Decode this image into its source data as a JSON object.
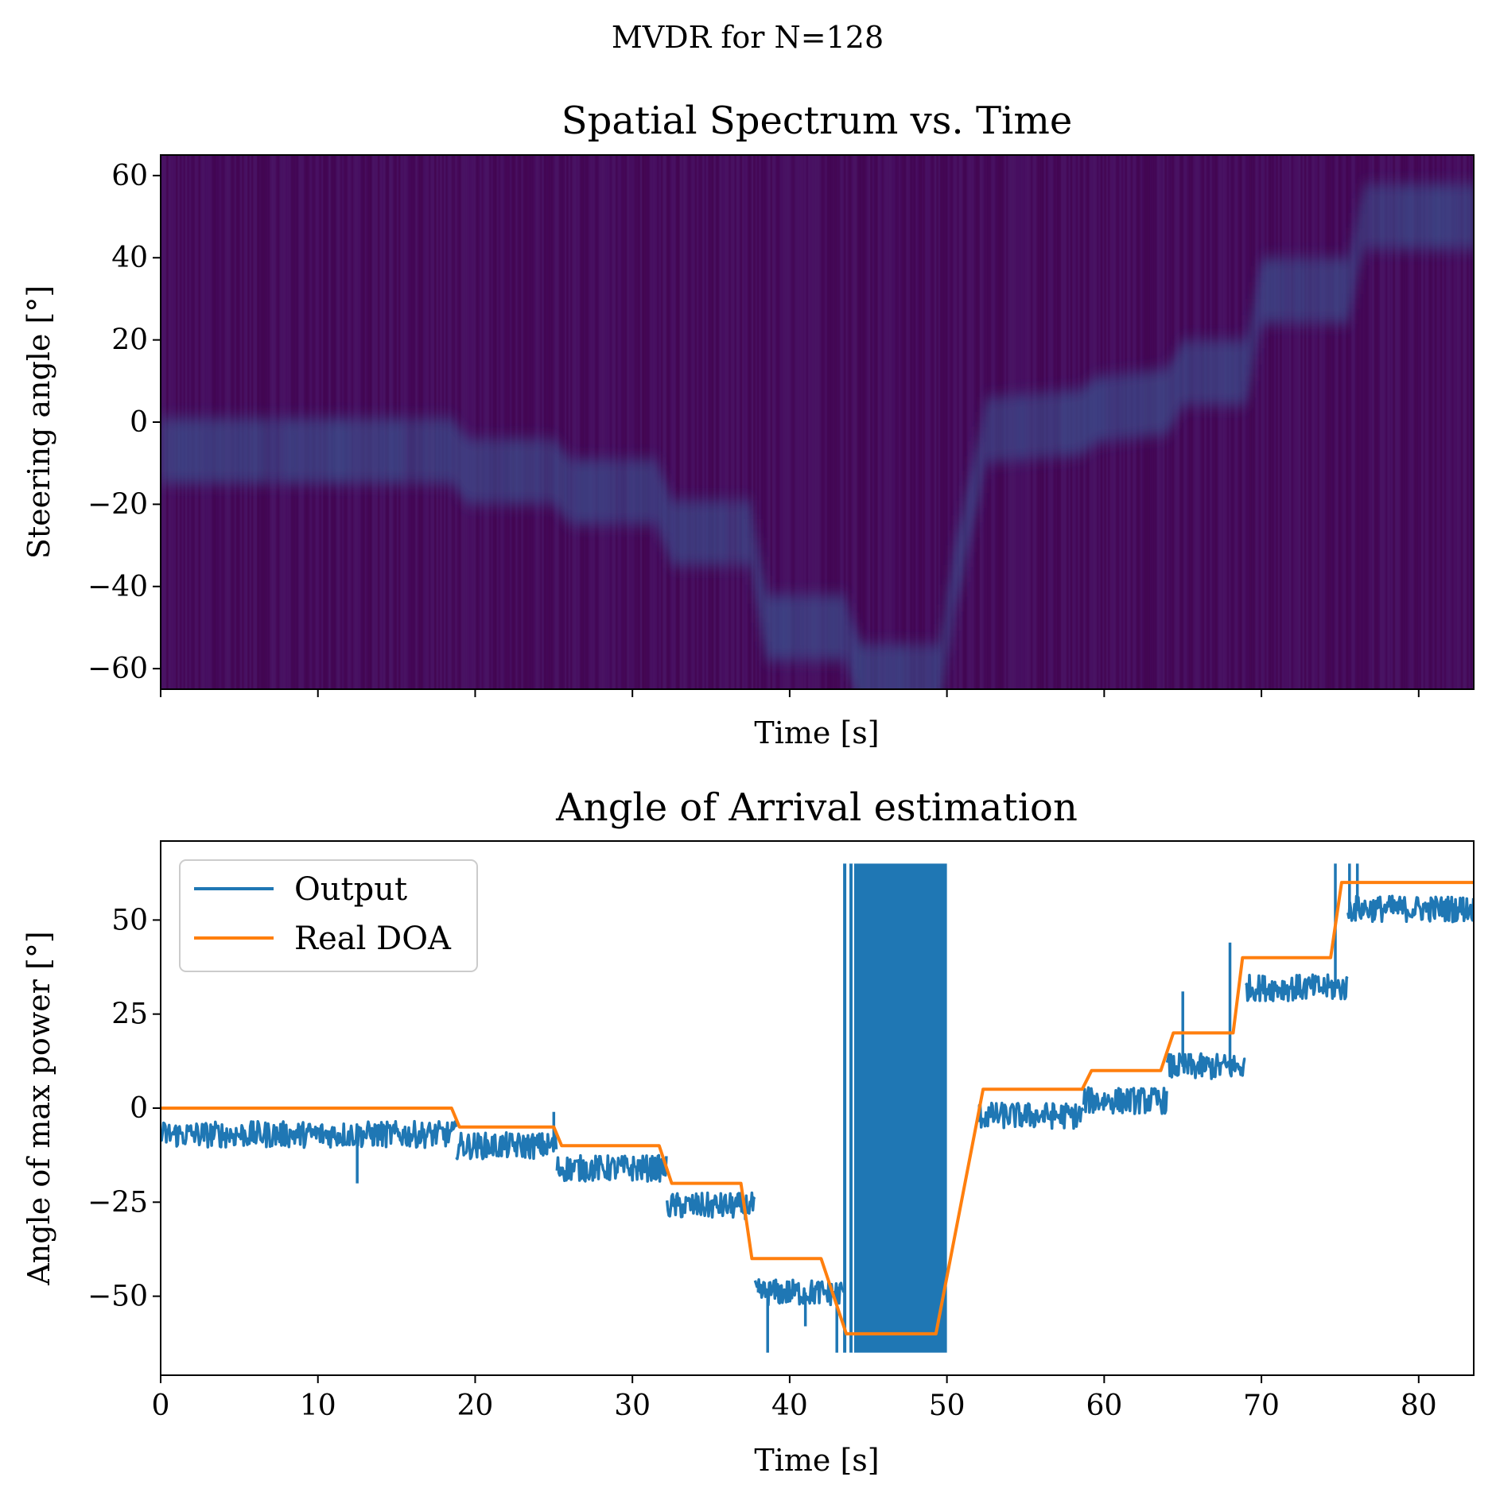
{
  "figure": {
    "suptitle": "MVDR for N=128"
  },
  "chart_data": [
    {
      "type": "heatmap",
      "title": "Spatial Spectrum vs. Time",
      "xlabel": "Time [s]",
      "ylabel": "Steering angle [°]",
      "xlim": [
        0,
        83.5
      ],
      "ylim": [
        -65,
        65
      ],
      "yticks": [
        60,
        40,
        20,
        0,
        -20,
        -40,
        -60
      ],
      "ytick_labels": [
        "60",
        "40",
        "20",
        "0",
        "−20",
        "−40",
        "−60"
      ],
      "xticks": [
        0,
        10,
        20,
        30,
        40,
        50,
        60,
        70,
        80
      ],
      "xtick_labels_visible": false,
      "colormap": "viridis",
      "background_color": "#460a5d",
      "ridge_color": "#3b4e8c",
      "ridge_track": [
        {
          "t": 0,
          "angle": -7
        },
        {
          "t": 18.5,
          "angle": -7
        },
        {
          "t": 19.5,
          "angle": -12
        },
        {
          "t": 25,
          "angle": -12
        },
        {
          "t": 26,
          "angle": -17
        },
        {
          "t": 31.5,
          "angle": -17
        },
        {
          "t": 32.5,
          "angle": -27
        },
        {
          "t": 37.5,
          "angle": -27
        },
        {
          "t": 38.5,
          "angle": -50
        },
        {
          "t": 43.5,
          "angle": -50
        },
        {
          "t": 44.5,
          "angle": -62
        },
        {
          "t": 49.5,
          "angle": -62
        },
        {
          "t": 50.5,
          "angle": -38
        },
        {
          "t": 51.5,
          "angle": -20
        },
        {
          "t": 52.5,
          "angle": -2
        },
        {
          "t": 58.5,
          "angle": 0
        },
        {
          "t": 59.5,
          "angle": 3
        },
        {
          "t": 64,
          "angle": 5
        },
        {
          "t": 65,
          "angle": 12
        },
        {
          "t": 69,
          "angle": 12
        },
        {
          "t": 70,
          "angle": 32
        },
        {
          "t": 75.5,
          "angle": 32
        },
        {
          "t": 76.5,
          "angle": 50
        },
        {
          "t": 83.5,
          "angle": 50
        }
      ]
    },
    {
      "type": "line",
      "title": "Angle of Arrival estimation",
      "xlabel": "Time [s]",
      "ylabel": "Angle of max power [°]",
      "xlim": [
        0,
        83.5
      ],
      "ylim": [
        -71,
        71
      ],
      "xticks": [
        0,
        10,
        20,
        30,
        40,
        50,
        60,
        70,
        80
      ],
      "xtick_labels": [
        "0",
        "10",
        "20",
        "30",
        "40",
        "50",
        "60",
        "70",
        "80"
      ],
      "yticks": [
        50,
        25,
        0,
        -25,
        -50
      ],
      "ytick_labels": [
        "50",
        "25",
        "0",
        "−25",
        "−50"
      ],
      "legend_position": "upper-left",
      "series": [
        {
          "name": "Output",
          "color": "#1f77b4",
          "noise_amplitude": 3.5,
          "segments": [
            {
              "t0": 0,
              "t1": 18.8,
              "mean": -7
            },
            {
              "t0": 18.8,
              "t1": 25.2,
              "mean": -10
            },
            {
              "t0": 25.2,
              "t1": 32.2,
              "mean": -16
            },
            {
              "t0": 32.2,
              "t1": 37.8,
              "mean": -26
            },
            {
              "t0": 37.8,
              "t1": 43.5,
              "mean": -49
            },
            {
              "t0": 52.0,
              "t1": 58.7,
              "mean": -2
            },
            {
              "t0": 58.7,
              "t1": 64.0,
              "mean": 2
            },
            {
              "t0": 64.0,
              "t1": 69.0,
              "mean": 11
            },
            {
              "t0": 69.0,
              "t1": 75.5,
              "mean": 32
            },
            {
              "t0": 75.5,
              "t1": 83.5,
              "mean": 53
            }
          ],
          "oscillation_band": {
            "t0": 43.5,
            "t1": 50.0,
            "min": -65,
            "max": 65
          },
          "spikes": [
            {
              "t": 12.5,
              "value": -20
            },
            {
              "t": 25.0,
              "value": -1
            },
            {
              "t": 38.0,
              "value": -48
            },
            {
              "t": 38.6,
              "value": -65
            },
            {
              "t": 41.0,
              "value": -58
            },
            {
              "t": 43.0,
              "value": -65
            },
            {
              "t": 50.8,
              "value": -28
            },
            {
              "t": 65.0,
              "value": 31
            },
            {
              "t": 68.0,
              "value": 44
            },
            {
              "t": 74.7,
              "value": 65
            },
            {
              "t": 75.6,
              "value": 65
            },
            {
              "t": 76.1,
              "value": 65
            }
          ]
        },
        {
          "name": "Real DOA",
          "color": "#ff7f0e",
          "x": [
            0,
            18.5,
            19.0,
            25.0,
            25.5,
            31.7,
            32.5,
            36.9,
            37.6,
            42.0,
            43.6,
            49.3,
            52.3,
            58.6,
            59.2,
            63.6,
            64.4,
            68.2,
            68.8,
            74.4,
            75.1,
            83.5
          ],
          "y": [
            0,
            0,
            -5,
            -5,
            -10,
            -10,
            -20,
            -20,
            -40,
            -40,
            -60,
            -60,
            5,
            5,
            10,
            10,
            20,
            20,
            40,
            40,
            60,
            60
          ]
        }
      ]
    }
  ]
}
